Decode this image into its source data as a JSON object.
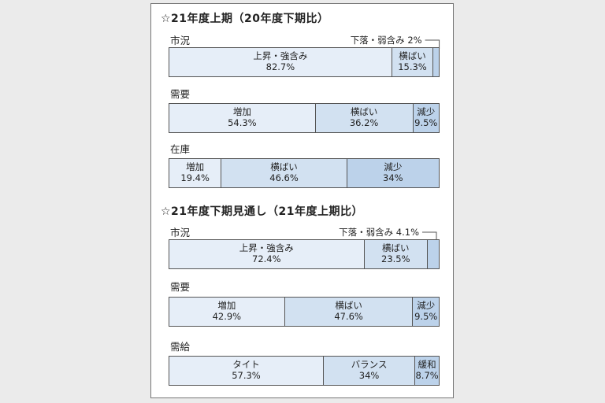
{
  "chart_data": [
    {
      "type": "bar",
      "title": "☆21年度上期（20年度下期比）",
      "groups": [
        {
          "label": "市況",
          "segments": [
            {
              "name": "上昇・強含み",
              "value": 82.7,
              "value_text": "82.7%"
            },
            {
              "name": "横ばい",
              "value": 15.3,
              "value_text": "15.3%"
            },
            {
              "name": "下落・弱含み",
              "value": 2,
              "value_text": "2%",
              "callout": "下落・弱含み 2%"
            }
          ]
        },
        {
          "label": "需要",
          "segments": [
            {
              "name": "増加",
              "value": 54.3,
              "value_text": "54.3%"
            },
            {
              "name": "横ばい",
              "value": 36.2,
              "value_text": "36.2%"
            },
            {
              "name": "減少",
              "value": 9.5,
              "value_text": "9.5%"
            }
          ]
        },
        {
          "label": "在庫",
          "segments": [
            {
              "name": "増加",
              "value": 19.4,
              "value_text": "19.4%"
            },
            {
              "name": "横ばい",
              "value": 46.6,
              "value_text": "46.6%"
            },
            {
              "name": "減少",
              "value": 34,
              "value_text": "34%"
            }
          ]
        }
      ]
    },
    {
      "type": "bar",
      "title": "☆21年度下期見通し（21年度上期比）",
      "groups": [
        {
          "label": "市況",
          "segments": [
            {
              "name": "上昇・強含み",
              "value": 72.4,
              "value_text": "72.4%"
            },
            {
              "name": "横ばい",
              "value": 23.5,
              "value_text": "23.5%"
            },
            {
              "name": "下落・弱含み",
              "value": 4.1,
              "value_text": "4.1%",
              "callout": "下落・弱含み 4.1%"
            }
          ]
        },
        {
          "label": "需要",
          "segments": [
            {
              "name": "増加",
              "value": 42.9,
              "value_text": "42.9%"
            },
            {
              "name": "横ばい",
              "value": 47.6,
              "value_text": "47.6%"
            },
            {
              "name": "減少",
              "value": 9.5,
              "value_text": "9.5%"
            }
          ]
        },
        {
          "label": "需給",
          "segments": [
            {
              "name": "タイト",
              "value": 57.3,
              "value_text": "57.3%"
            },
            {
              "name": "バランス",
              "value": 34,
              "value_text": "34%"
            },
            {
              "name": "緩和",
              "value": 8.7,
              "value_text": "8.7%"
            }
          ]
        }
      ]
    }
  ],
  "colors": {
    "segment_1": "#e6eef8",
    "segment_2": "#d2e1f1",
    "segment_3": "#bcd2ea",
    "border": "#555555"
  }
}
